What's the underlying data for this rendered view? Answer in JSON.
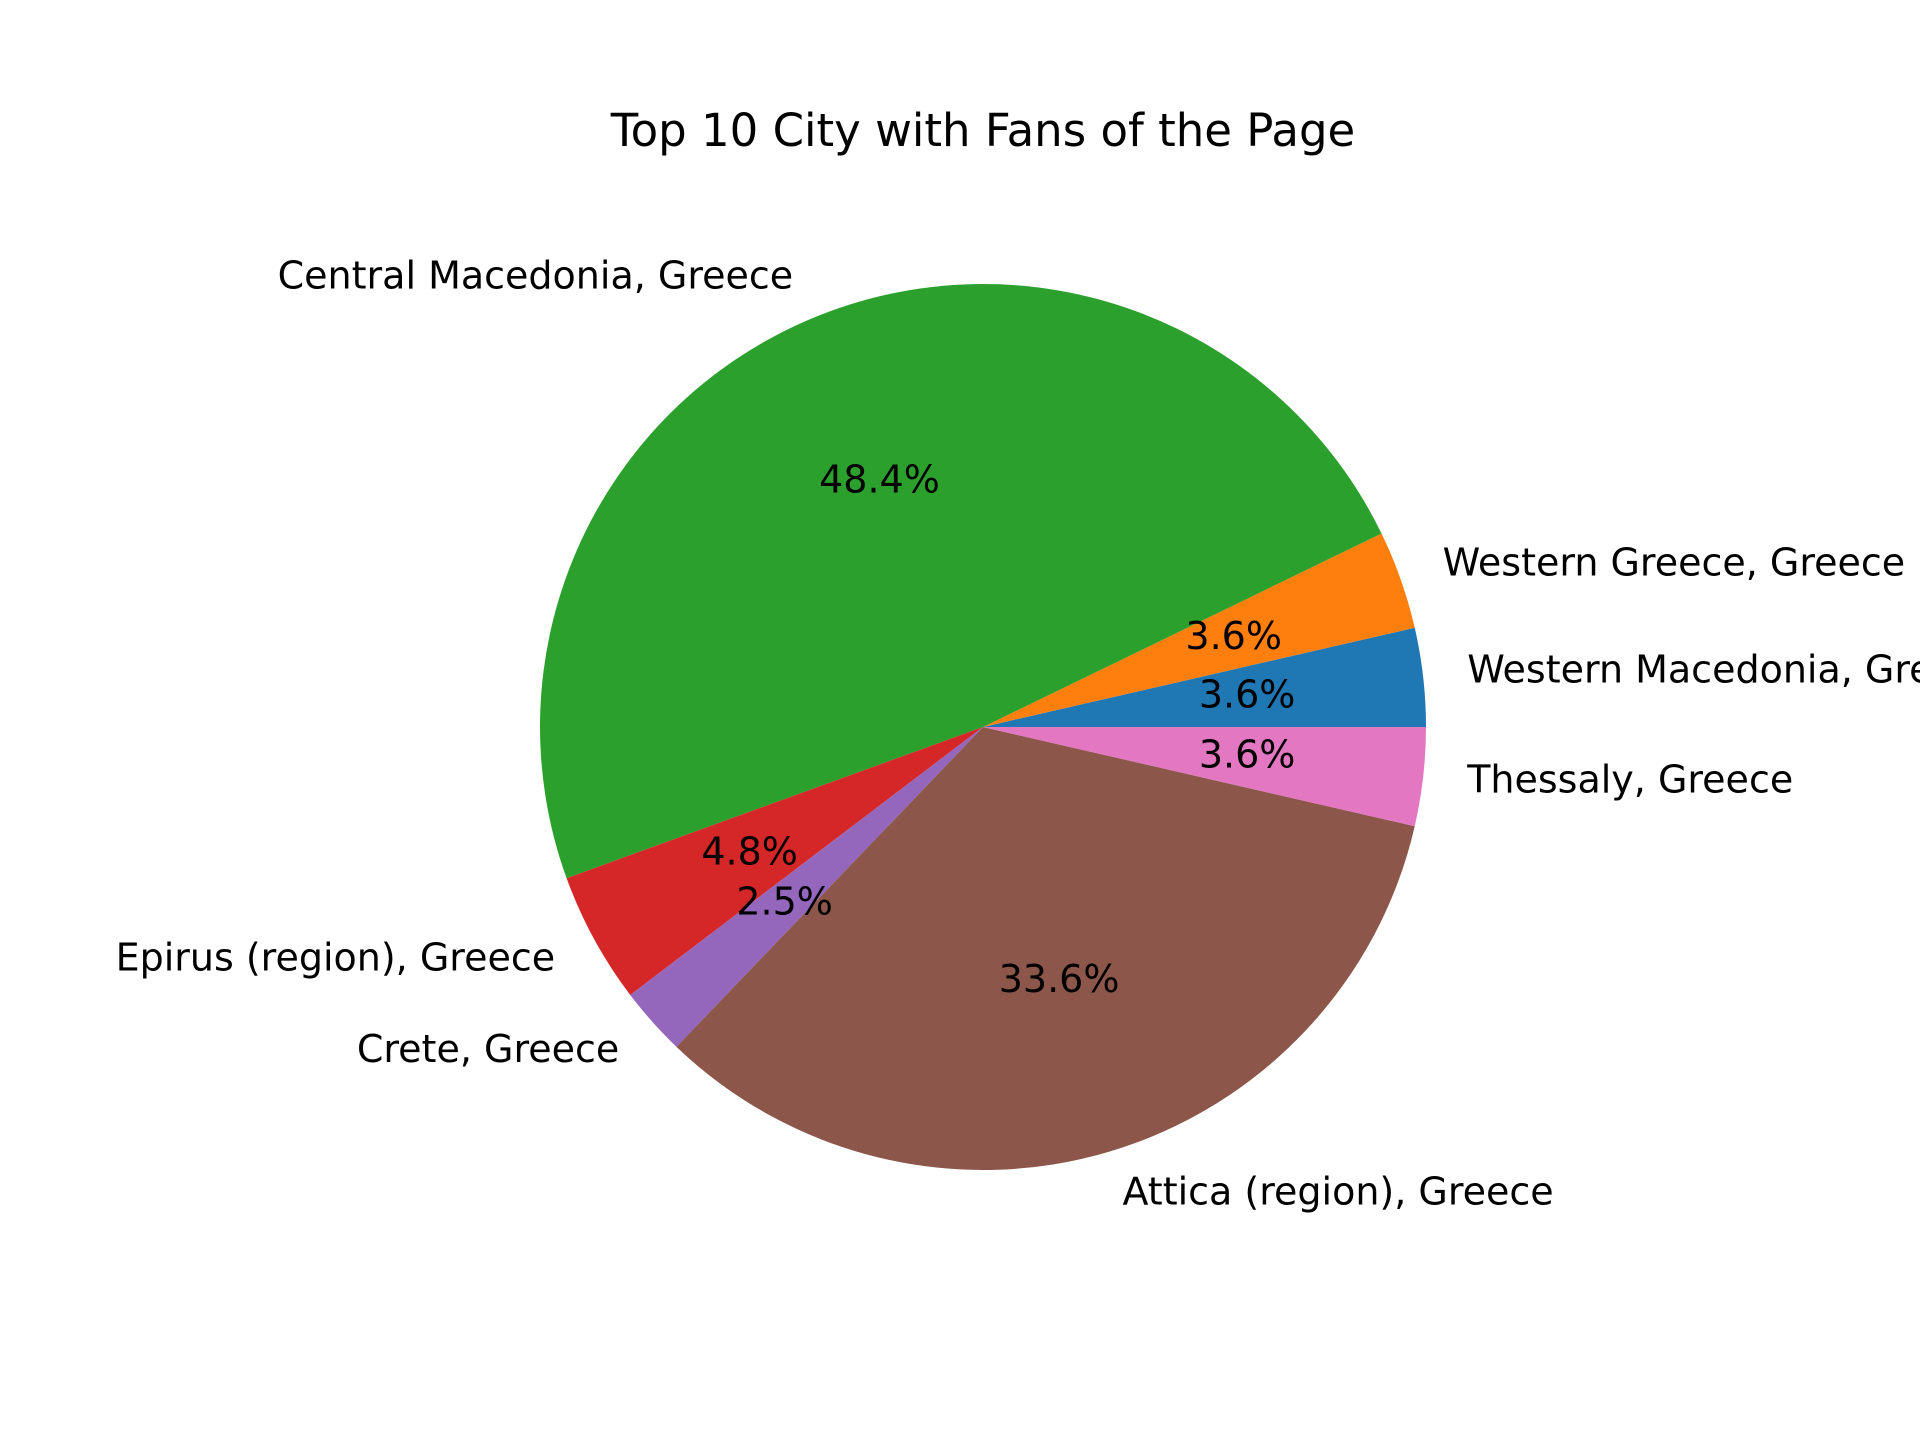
{
  "chart_data": {
    "type": "pie",
    "title": "Top 10 City with Fans of the Page",
    "start_angle_deg": 0,
    "direction": "counterclockwise",
    "slices": [
      {
        "label": "Western Macedonia, Greece",
        "value": 3.6,
        "pct_label": "3.6%",
        "color": "#1f77b4"
      },
      {
        "label": "Western Greece, Greece",
        "value": 3.6,
        "pct_label": "3.6%",
        "color": "#ff7f0e"
      },
      {
        "label": "Central Macedonia, Greece",
        "value": 48.4,
        "pct_label": "48.4%",
        "color": "#2ca02c"
      },
      {
        "label": "Epirus (region), Greece",
        "value": 4.8,
        "pct_label": "4.8%",
        "color": "#d62728"
      },
      {
        "label": "Crete, Greece",
        "value": 2.5,
        "pct_label": "2.5%",
        "color": "#9467bd"
      },
      {
        "label": "Attica (region), Greece",
        "value": 33.6,
        "pct_label": "33.6%",
        "color": "#8c564b"
      },
      {
        "label": "Thessaly, Greece",
        "value": 3.6,
        "pct_label": "3.6%",
        "color": "#e377c2"
      }
    ]
  }
}
